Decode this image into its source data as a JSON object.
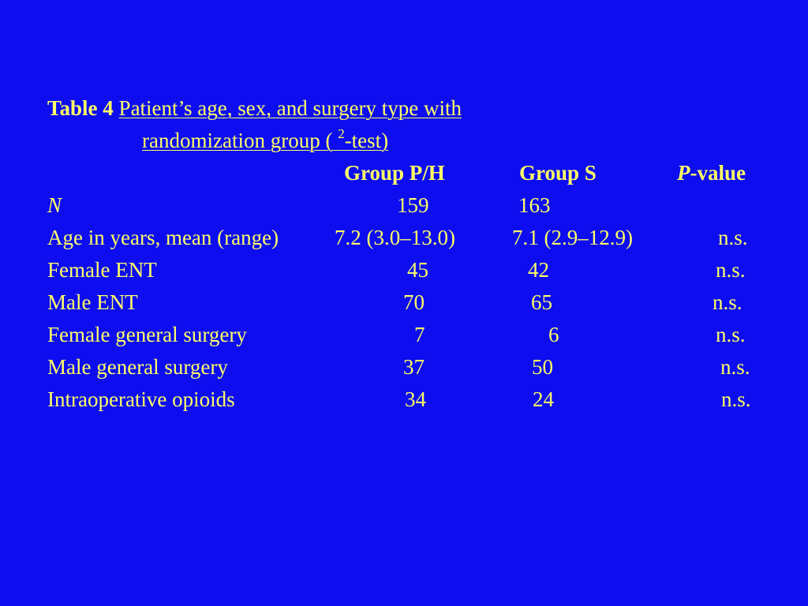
{
  "table": {
    "label": "Table 4",
    "caption_line1": "Patient’s age, sex, and surgery type with",
    "caption_line2_pre": "randomization group ( ",
    "caption_sup": "2",
    "caption_line2_post": "-test)",
    "headers": {
      "group_ph": "Group P/H",
      "group_s": "Group S",
      "p_italic": "P",
      "p_rest": "-value"
    },
    "rows": [
      {
        "label": "N",
        "ph": "159",
        "s": "163",
        "p": ""
      },
      {
        "label": "Age in years, mean (range)",
        "ph": "7.2 (3.0–13.0)",
        "s": "7.1 (2.9–12.9)",
        "p": "n.s."
      },
      {
        "label": "Female ENT",
        "ph": "45",
        "s": "42",
        "p": "n.s."
      },
      {
        "label": "Male ENT",
        "ph": "70",
        "s": "65",
        "p": "n.s."
      },
      {
        "label": "Female general surgery",
        "ph": "7",
        "s": "6",
        "p": "n.s."
      },
      {
        "label": "Male general surgery",
        "ph": "37",
        "s": "50",
        "p": "n.s."
      },
      {
        "label": "Intraoperative opioids",
        "ph": "34",
        "s": "24",
        "p": "n.s."
      }
    ]
  },
  "colors": {
    "background": "#0d0df0",
    "text": "#ffff66"
  }
}
